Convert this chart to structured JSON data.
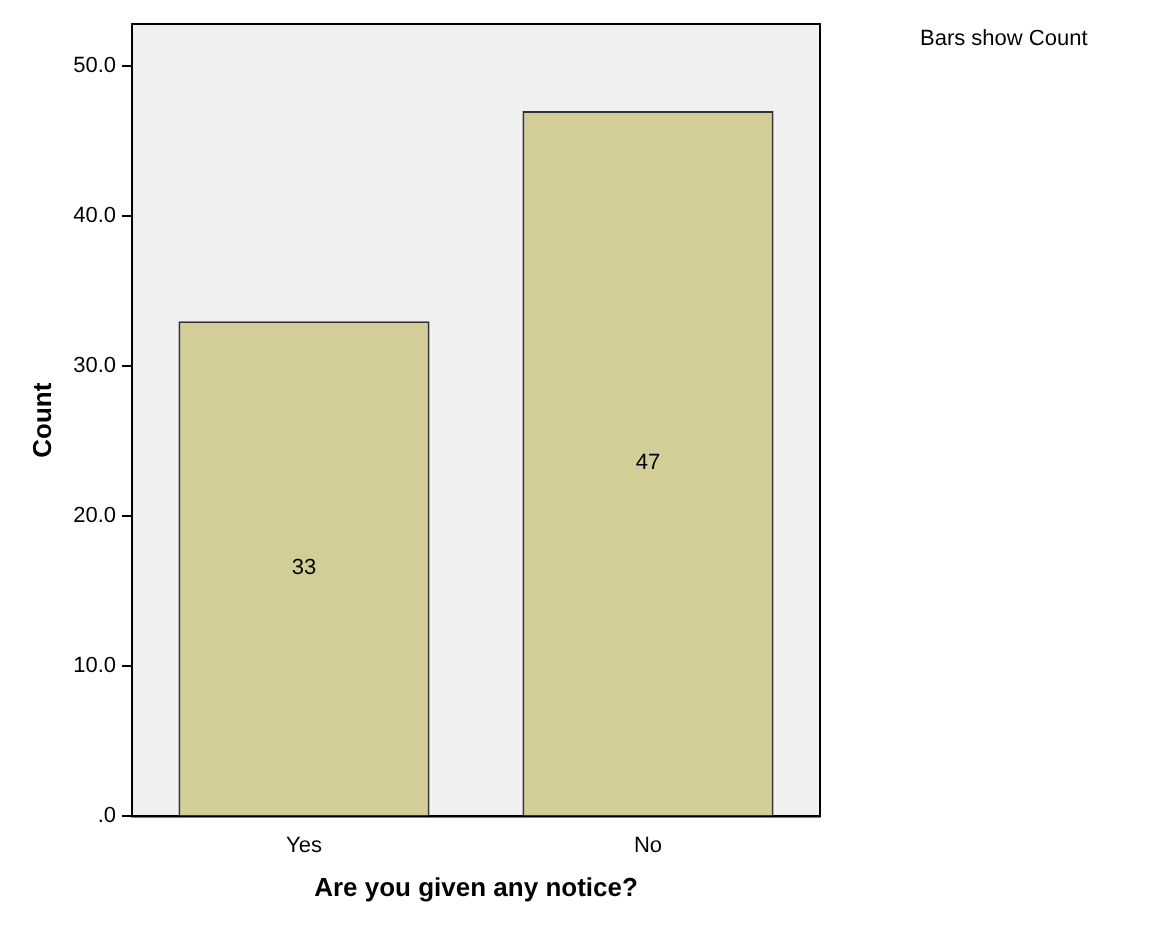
{
  "chart_data": {
    "type": "bar",
    "xlabel": "Are you given any notice?",
    "ylabel": "Count",
    "categories": [
      "Yes",
      "No"
    ],
    "values": [
      33,
      47
    ],
    "color": "#d3ce97",
    "ylim": [
      0,
      52.8
    ],
    "yticks": [
      {
        "value": 0,
        "label": ".0"
      },
      {
        "value": 10,
        "label": "10.0"
      },
      {
        "value": 20,
        "label": "20.0"
      },
      {
        "value": 30,
        "label": "30.0"
      },
      {
        "value": 40,
        "label": "40.0"
      },
      {
        "value": 50,
        "label": "50.0"
      }
    ],
    "data_labels": true,
    "grid": false,
    "legend": false,
    "annotations": [
      "Bars show Count"
    ]
  }
}
